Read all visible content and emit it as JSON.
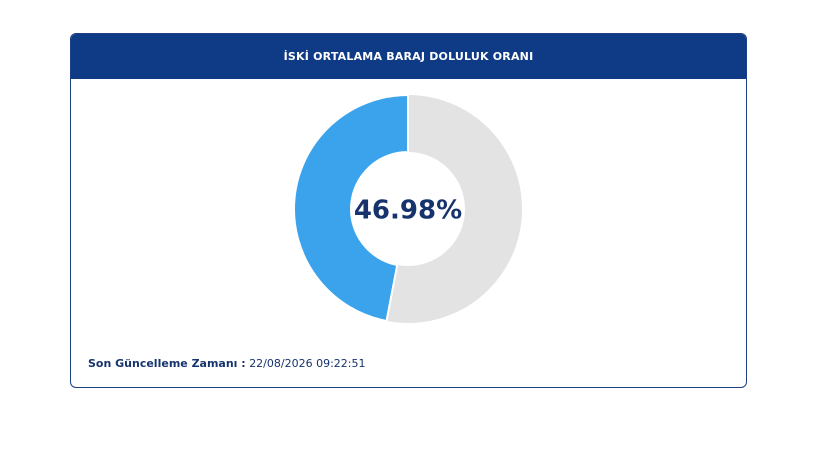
{
  "chart_data": {
    "type": "donut",
    "title": "İSKİ ORTALAMA BARAJ DOLULUK ORANI",
    "values": [
      46.98
    ],
    "value_labels": [
      "46.98%"
    ],
    "color": "#3ba3ec",
    "track_color": "#e3e3e3",
    "footer_label": "Son Güncelleme Zamanı :",
    "footer_value": "22/08/2026 09:22:51"
  }
}
